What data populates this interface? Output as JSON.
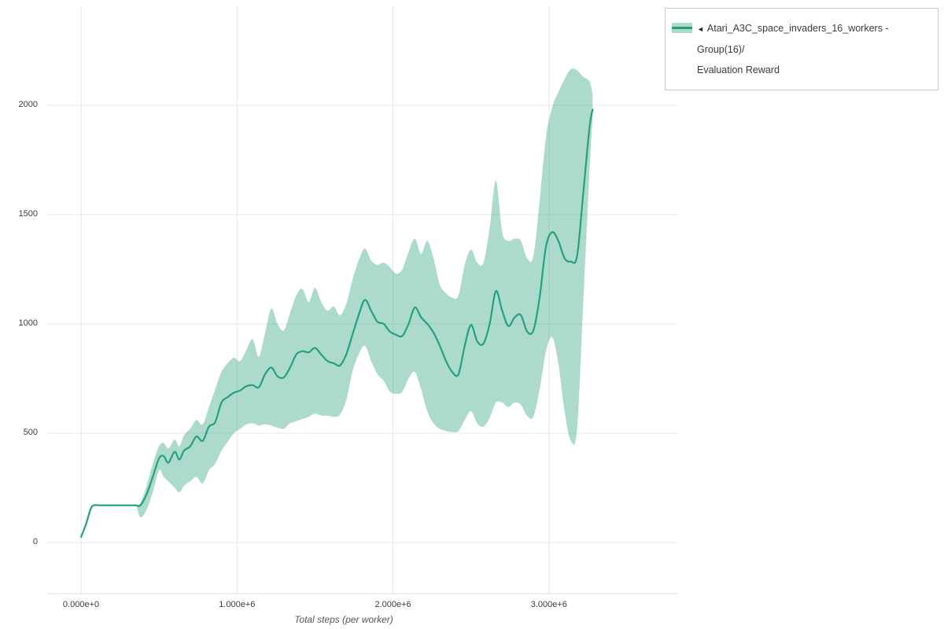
{
  "page": {
    "background": "#ffffff"
  },
  "legend": {
    "marker": "◄",
    "name": "Atari_A3C_space_invaders_16_workers - Group(16)/",
    "metric": "Evaluation Reward"
  },
  "chart_data": {
    "type": "line",
    "title": "",
    "xlabel": "Total steps (per worker)",
    "ylabel": "",
    "grid": true,
    "legend_position": "top-right",
    "line_color": "#24a17c",
    "band_color": "#24a17c",
    "band_opacity": 0.38,
    "grid_color": "#e7e7e7",
    "axis_line_color": "#dedede",
    "xlim": [
      -217000,
      3828000
    ],
    "ylim": [
      -234,
      2453
    ],
    "x_tick_values": [
      0,
      1000000,
      2000000,
      3000000
    ],
    "x_tick_labels": [
      "0.000e+0",
      "1.000e+6",
      "2.000e+6",
      "3.000e+6"
    ],
    "y_ticks": [
      0,
      500,
      1000,
      1500,
      2000
    ],
    "series": [
      {
        "name": "Atari_A3C_space_invaders_16_workers - Group(16)/Evaluation Reward",
        "x": [
          0,
          30000,
          60000,
          80000,
          120000,
          200000,
          280000,
          350000,
          380000,
          420000,
          460000,
          500000,
          530000,
          560000,
          600000,
          630000,
          660000,
          700000,
          740000,
          780000,
          820000,
          860000,
          900000,
          940000,
          980000,
          1020000,
          1060000,
          1100000,
          1140000,
          1180000,
          1220000,
          1260000,
          1300000,
          1340000,
          1380000,
          1420000,
          1460000,
          1500000,
          1540000,
          1580000,
          1620000,
          1660000,
          1700000,
          1740000,
          1780000,
          1820000,
          1860000,
          1900000,
          1940000,
          1980000,
          2020000,
          2060000,
          2100000,
          2140000,
          2180000,
          2220000,
          2260000,
          2300000,
          2340000,
          2380000,
          2420000,
          2460000,
          2500000,
          2540000,
          2580000,
          2620000,
          2660000,
          2700000,
          2740000,
          2780000,
          2820000,
          2860000,
          2900000,
          2940000,
          2980000,
          3020000,
          3060000,
          3100000,
          3140000,
          3180000,
          3220000,
          3260000,
          3280000
        ],
        "mean": [
          25,
          80,
          150,
          170,
          170,
          170,
          170,
          170,
          170,
          220,
          300,
          385,
          395,
          365,
          415,
          380,
          420,
          440,
          485,
          465,
          530,
          550,
          640,
          665,
          685,
          695,
          715,
          720,
          710,
          770,
          800,
          760,
          755,
          800,
          860,
          875,
          870,
          890,
          860,
          830,
          820,
          810,
          860,
          950,
          1040,
          1110,
          1060,
          1010,
          1000,
          965,
          950,
          945,
          1000,
          1075,
          1030,
          1000,
          960,
          900,
          830,
          780,
          770,
          900,
          995,
          920,
          910,
          1000,
          1150,
          1060,
          990,
          1030,
          1040,
          965,
          970,
          1120,
          1350,
          1420,
          1380,
          1300,
          1285,
          1310,
          1600,
          1900,
          1980
        ],
        "lower": [
          25,
          80,
          150,
          168,
          166,
          166,
          166,
          166,
          115,
          150,
          230,
          330,
          300,
          280,
          250,
          230,
          260,
          280,
          300,
          270,
          330,
          360,
          420,
          460,
          500,
          520,
          540,
          545,
          535,
          540,
          535,
          525,
          520,
          545,
          555,
          565,
          575,
          590,
          580,
          580,
          575,
          585,
          650,
          780,
          860,
          900,
          830,
          770,
          740,
          690,
          680,
          690,
          750,
          780,
          700,
          600,
          545,
          520,
          510,
          505,
          510,
          560,
          600,
          545,
          530,
          570,
          640,
          640,
          620,
          640,
          630,
          580,
          575,
          700,
          870,
          940,
          820,
          600,
          465,
          520,
          1100,
          1700,
          1950
        ],
        "upper": [
          25,
          80,
          150,
          172,
          174,
          174,
          174,
          174,
          180,
          260,
          360,
          440,
          455,
          430,
          470,
          440,
          490,
          520,
          560,
          540,
          620,
          700,
          780,
          820,
          845,
          830,
          880,
          930,
          850,
          960,
          1070,
          1000,
          970,
          1050,
          1130,
          1160,
          1100,
          1165,
          1100,
          1060,
          1080,
          1040,
          1090,
          1200,
          1290,
          1345,
          1290,
          1270,
          1280,
          1260,
          1230,
          1250,
          1330,
          1390,
          1320,
          1380,
          1300,
          1180,
          1140,
          1120,
          1130,
          1270,
          1340,
          1280,
          1280,
          1440,
          1655,
          1420,
          1380,
          1390,
          1380,
          1300,
          1310,
          1560,
          1850,
          1990,
          2060,
          2120,
          2165,
          2160,
          2130,
          2110,
          2050
        ]
      }
    ]
  }
}
